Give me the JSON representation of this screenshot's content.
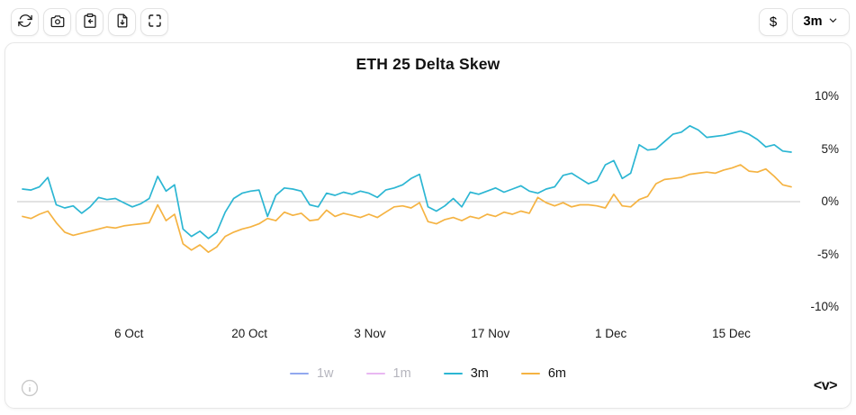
{
  "toolbar": {
    "buttons": [
      {
        "id": "refresh",
        "icon": "refresh-icon"
      },
      {
        "id": "screenshot",
        "icon": "camera-icon"
      },
      {
        "id": "copy-chart",
        "icon": "clipboard-arrow-icon"
      },
      {
        "id": "download-data",
        "icon": "file-download-icon"
      },
      {
        "id": "fullscreen",
        "icon": "fullscreen-icon"
      }
    ],
    "currency_button_label": "$",
    "range_dropdown_selected": "3m"
  },
  "chart": {
    "title": "ETH 25 Delta Skew",
    "watermark": "<v>"
  },
  "colors": {
    "text": "#121212",
    "disabled_text": "#b5b5bd",
    "grid_line": "#c6c6c6",
    "series_1w": "#92a8ef",
    "series_1m": "#e9b8f2",
    "series_3m": "#2cb6d3",
    "series_6m": "#f5b342"
  },
  "chart_data": {
    "type": "line",
    "title": "ETH 25 Delta Skew",
    "xlabel": "",
    "ylabel": "",
    "y_unit": "%",
    "ylim": [
      -11.5,
      11.5
    ],
    "grid": "zero-line-only",
    "legend_position": "bottom",
    "y_ticks": [
      {
        "label": "10%",
        "value": 10
      },
      {
        "label": "5%",
        "value": 5
      },
      {
        "label": "0%",
        "value": 0
      },
      {
        "label": "-5%",
        "value": -5
      },
      {
        "label": "-10%",
        "value": -10
      }
    ],
    "x_ticks": [
      {
        "label": "6 Oct",
        "day": 13
      },
      {
        "label": "20 Oct",
        "day": 27
      },
      {
        "label": "3 Nov",
        "day": 41
      },
      {
        "label": "17 Nov",
        "day": 55
      },
      {
        "label": "1 Dec",
        "day": 69
      },
      {
        "label": "15 Dec",
        "day": 83
      }
    ],
    "x_range_days": [
      0,
      91
    ],
    "series": [
      {
        "name": "1w",
        "color": "#92a8ef",
        "visible": false,
        "values": []
      },
      {
        "name": "1m",
        "color": "#e9b8f2",
        "visible": false,
        "values": []
      },
      {
        "name": "3m",
        "color": "#2cb6d3",
        "visible": true,
        "values": [
          1.2,
          1.1,
          1.4,
          2.3,
          -0.3,
          -0.6,
          -0.4,
          -1.1,
          -0.5,
          0.4,
          0.2,
          0.3,
          -0.1,
          -0.5,
          -0.2,
          0.3,
          2.4,
          1.0,
          1.6,
          -2.6,
          -3.3,
          -2.8,
          -3.5,
          -2.9,
          -1.0,
          0.3,
          0.8,
          1.0,
          1.1,
          -1.4,
          0.6,
          1.3,
          1.2,
          1.0,
          -0.3,
          -0.5,
          0.8,
          0.6,
          0.9,
          0.7,
          1.0,
          0.8,
          0.4,
          1.1,
          1.3,
          1.6,
          2.2,
          2.6,
          -0.5,
          -0.9,
          -0.4,
          0.3,
          -0.5,
          0.9,
          0.7,
          1.0,
          1.3,
          0.9,
          1.2,
          1.5,
          1.0,
          0.8,
          1.2,
          1.4,
          2.5,
          2.7,
          2.2,
          1.7,
          2.0,
          3.5,
          3.9,
          2.2,
          2.7,
          5.4,
          4.9,
          5.0,
          5.7,
          6.4,
          6.6,
          7.2,
          6.8,
          6.1,
          6.2,
          6.3,
          6.5,
          6.7,
          6.4,
          5.9,
          5.2,
          5.4,
          4.8,
          4.7
        ]
      },
      {
        "name": "6m",
        "color": "#f5b342",
        "visible": true,
        "values": [
          -1.4,
          -1.6,
          -1.2,
          -0.9,
          -2.0,
          -2.9,
          -3.2,
          -3.0,
          -2.8,
          -2.6,
          -2.4,
          -2.5,
          -2.3,
          -2.2,
          -2.1,
          -2.0,
          -0.3,
          -1.8,
          -1.2,
          -4.0,
          -4.6,
          -4.1,
          -4.8,
          -4.3,
          -3.3,
          -2.9,
          -2.6,
          -2.4,
          -2.1,
          -1.6,
          -1.8,
          -1.0,
          -1.3,
          -1.1,
          -1.8,
          -1.7,
          -0.8,
          -1.4,
          -1.1,
          -1.3,
          -1.5,
          -1.2,
          -1.5,
          -1.0,
          -0.5,
          -0.4,
          -0.6,
          -0.1,
          -1.9,
          -2.1,
          -1.7,
          -1.5,
          -1.8,
          -1.4,
          -1.6,
          -1.2,
          -1.4,
          -1.0,
          -1.2,
          -0.9,
          -1.1,
          0.4,
          -0.1,
          -0.4,
          -0.1,
          -0.5,
          -0.3,
          -0.3,
          -0.4,
          -0.6,
          0.7,
          -0.4,
          -0.5,
          0.2,
          0.5,
          1.7,
          2.1,
          2.2,
          2.3,
          2.6,
          2.7,
          2.8,
          2.7,
          3.0,
          3.2,
          3.5,
          2.9,
          2.8,
          3.1,
          2.4,
          1.6,
          1.4
        ]
      }
    ]
  }
}
